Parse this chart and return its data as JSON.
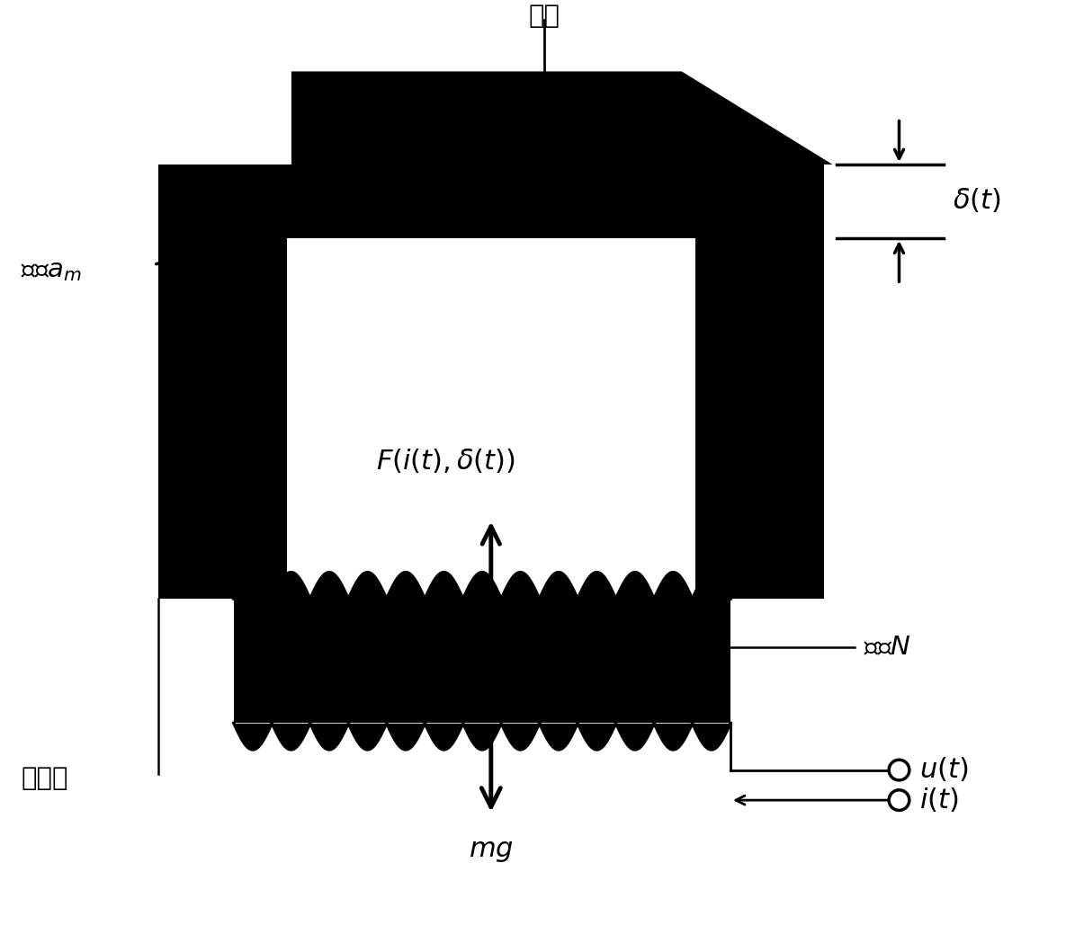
{
  "bg_color": "#ffffff",
  "black": "#000000",
  "label_guidao": "导轨",
  "label_mianji": "面积$a_m$",
  "label_dianci": "电磁铁",
  "label_F": "$F(i(t), \\delta(t))$",
  "label_delta": "$\\delta(t)$",
  "label_N": "匹数$N$",
  "label_mg": "$mg$",
  "label_ut": "$u(t)$",
  "label_it": "$i(t)$",
  "figsize": [
    12.05,
    10.29
  ],
  "dpi": 100
}
